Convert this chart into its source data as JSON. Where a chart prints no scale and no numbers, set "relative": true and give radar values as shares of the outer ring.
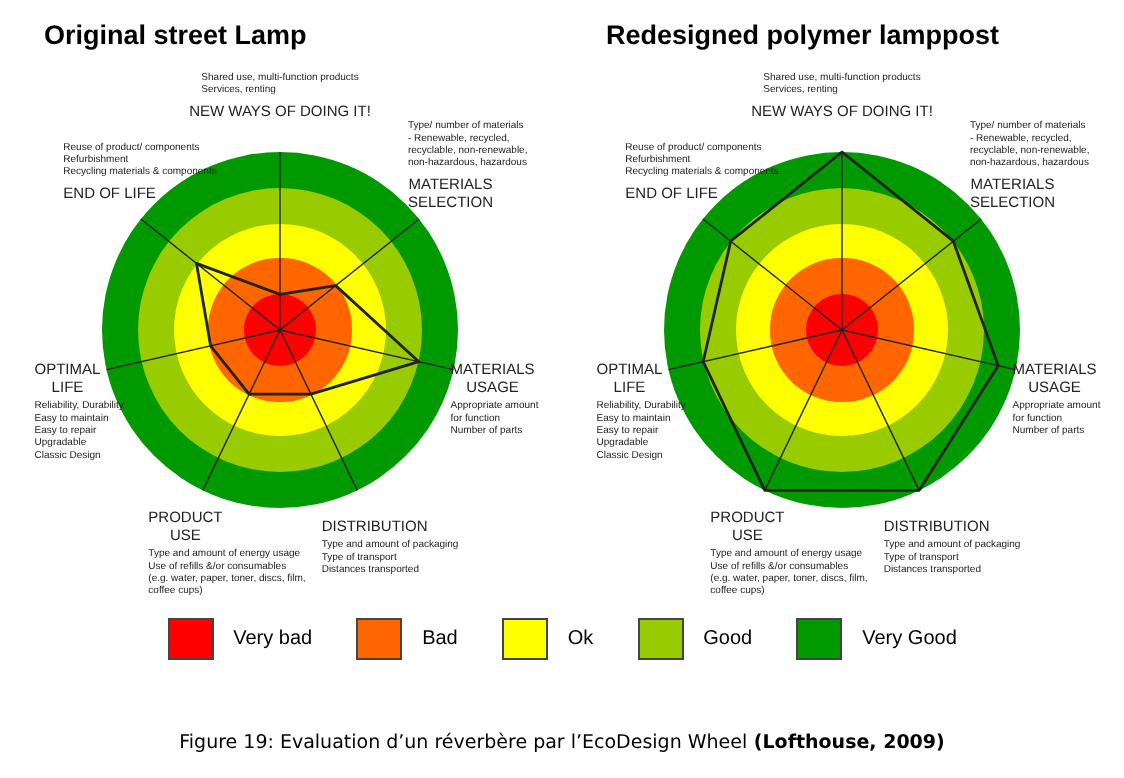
{
  "chart_data": [
    {
      "type": "radar",
      "title": "Original street Lamp",
      "relative": true,
      "categories": [
        "NEW WAYS OF DOING IT!",
        "MATERIALS\nSELECTION",
        "MATERIALS\nUSAGE",
        "DISTRIBUTION",
        "PRODUCT\nUSE",
        "OPTIMAL\nLIFE",
        "END OF LIFE"
      ],
      "series": [
        {
          "color": "#222222",
          "values": [
            0.2,
            0.4,
            0.8,
            0.4,
            0.4,
            0.4,
            0.6
          ]
        }
      ],
      "marker": "none",
      "annotations": [
        "Shared use, multi-function products\nServices, renting",
        "Type/ number of materials\n- Renewable, recycled,\nrecyclable, non-renewable,\nnon-hazardous, hazardous",
        "Appropriate amount\nfor function\nNumber of parts",
        "Type and amount of packaging\nType of transport\nDistances transported",
        "Type and amount of energy usage\nUse of refills &/or consumables\n(e.g. water, paper, toner, discs, film,\ncoffee cups)",
        "Reliability, Durability\nEasy to maintain\nEasy to repair\nUpgradable\nClassic Design",
        "Reuse of product/ components\nRefurbishment\nRecycling materials & components",
        "Very bad",
        "Bad",
        "Ok",
        "Good",
        "Very Good"
      ]
    },
    {
      "type": "radar",
      "title": "Redesigned polymer lamppost",
      "relative": true,
      "categories": [
        "NEW WAYS OF DOING IT!",
        "MATERIALS\nSELECTION",
        "MATERIALS\nUSAGE",
        "DISTRIBUTION",
        "PRODUCT\nUSE",
        "OPTIMAL\nLIFE",
        "END OF LIFE"
      ],
      "series": [
        {
          "color": "#222222",
          "values": [
            1,
            0.8,
            0.9,
            1,
            1,
            0.8,
            0.8
          ]
        }
      ],
      "marker": "none",
      "annotations": [
        "Shared use, multi-function products\nServices, renting",
        "Type/ number of materials\n- Renewable, recycled,\nrecyclable, non-renewable,\nnon-hazardous, hazardous",
        "Appropriate amount\nfor function\nNumber of parts",
        "Type and amount of packaging\nType of transport\nDistances transported",
        "Type and amount of energy usage\nUse of refills &/or consumables\n(e.g. water, paper, toner, discs, film,\ncoffee cups)",
        "Reliability, Durability\nEasy to maintain\nEasy to repair\nUpgradable\nClassic Design",
        "Reuse of product/ components\nRefurbishment\nRecycling materials & components",
        "Figure 19: Evaluation d’un réverbère par l’EcoDesign Wheel",
        "(Lofthouse, 2009)"
      ]
    }
  ]
}
